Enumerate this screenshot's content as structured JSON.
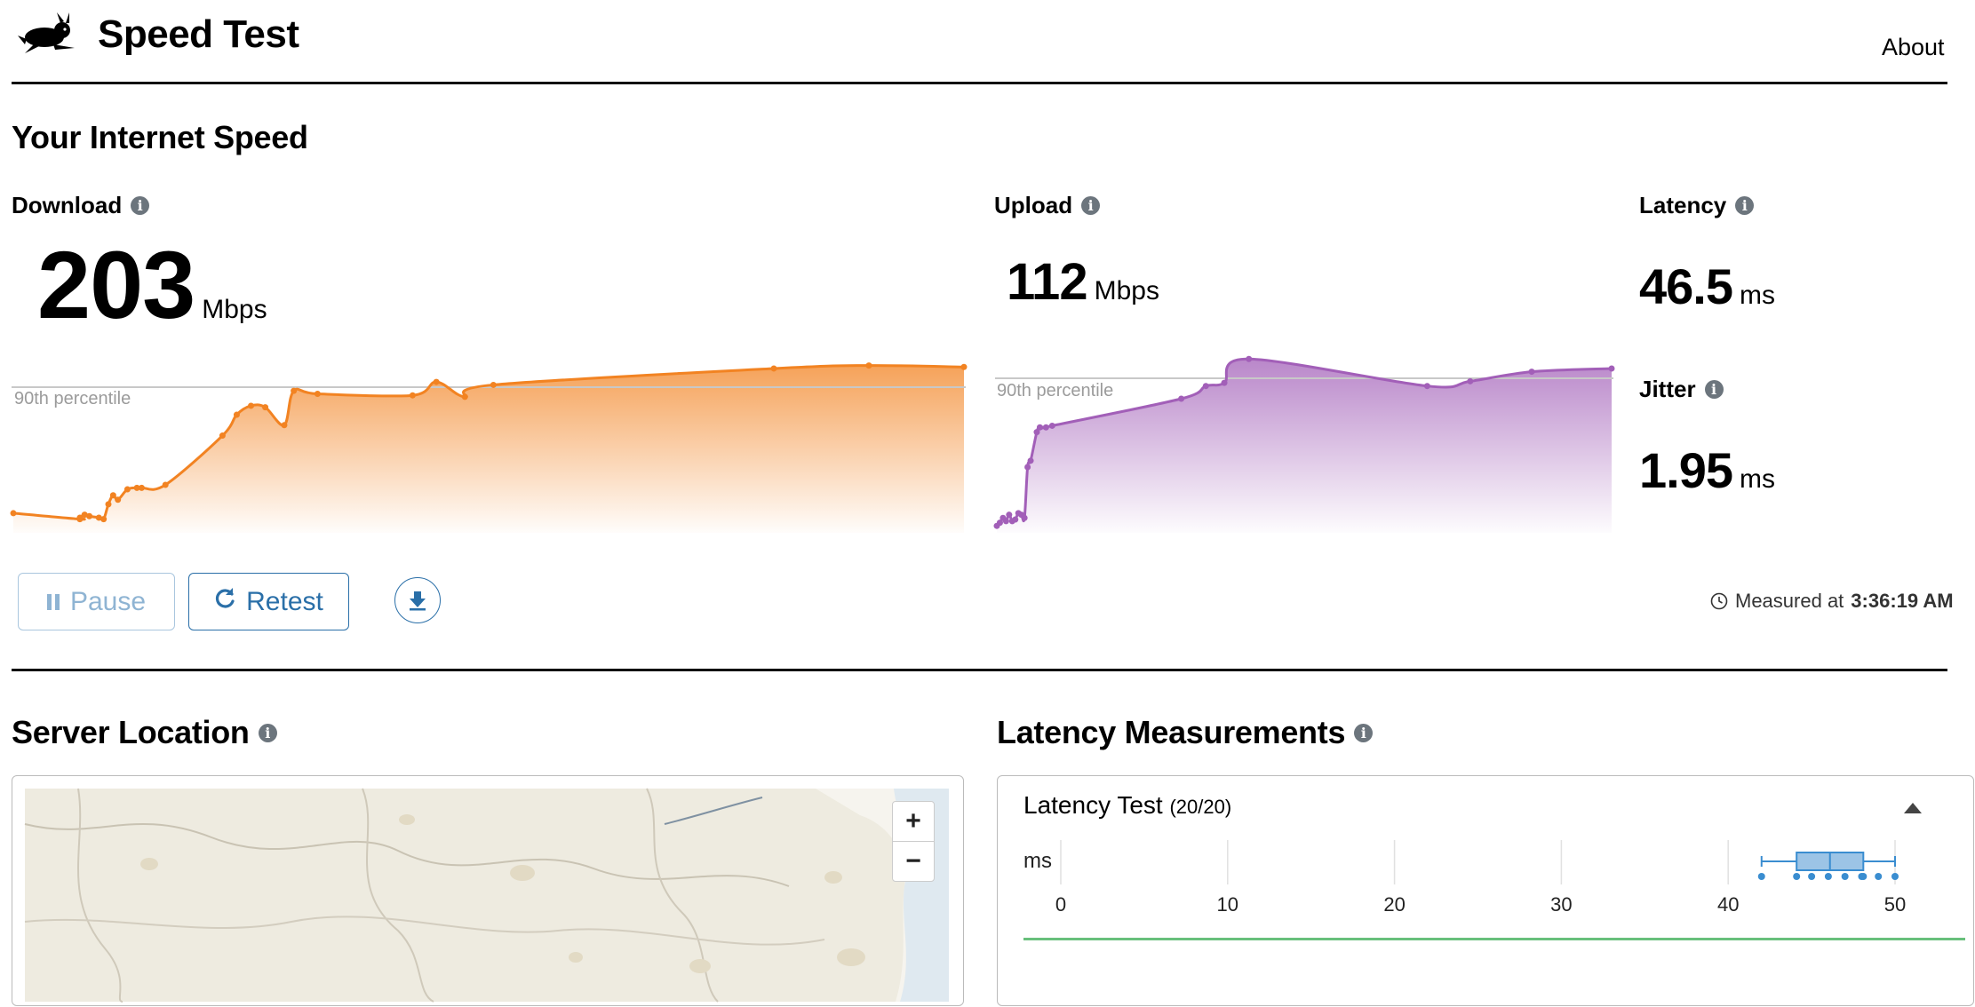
{
  "header": {
    "title": "Speed Test",
    "about": "About"
  },
  "speed": {
    "section_title": "Your Internet Speed",
    "download": {
      "label": "Download",
      "value": "203",
      "unit": "Mbps",
      "percentile_label": "90th percentile",
      "color": "#f28322"
    },
    "upload": {
      "label": "Upload",
      "value": "112",
      "unit": "Mbps",
      "percentile_label": "90th percentile",
      "color": "#a25fb8"
    },
    "latency": {
      "label": "Latency",
      "value": "46.5",
      "unit": "ms"
    },
    "jitter": {
      "label": "Jitter",
      "value": "1.95",
      "unit": "ms"
    }
  },
  "controls": {
    "pause_label": "Pause",
    "retest_label": "Retest",
    "measured_prefix": "Measured at",
    "measured_time": "3:36:19 AM"
  },
  "server": {
    "section_title": "Server Location",
    "zoom_in": "+",
    "zoom_out": "−"
  },
  "latency_section": {
    "section_title": "Latency Measurements",
    "test_title": "Latency Test",
    "test_count": "(20/20)",
    "axis_unit": "ms",
    "ticks": [
      "0",
      "10",
      "20",
      "30",
      "40",
      "50"
    ]
  },
  "chart_data": [
    {
      "type": "area",
      "name": "download",
      "x": [
        0,
        0.07,
        0.07,
        0.075,
        0.08,
        0.09,
        0.095,
        0.1,
        0.105,
        0.11,
        0.12,
        0.13,
        0.135,
        0.16,
        0.22,
        0.235,
        0.25,
        0.265,
        0.285,
        0.295,
        0.32,
        0.42,
        0.445,
        0.475,
        0.505,
        0.8,
        0.9,
        1.0
      ],
      "values": [
        0.06,
        0.02,
        0.03,
        0.05,
        0.04,
        0.03,
        0.02,
        0.12,
        0.18,
        0.15,
        0.22,
        0.23,
        0.23,
        0.25,
        0.58,
        0.72,
        0.78,
        0.77,
        0.65,
        0.88,
        0.86,
        0.85,
        0.94,
        0.84,
        0.92,
        1.03,
        1.05,
        1.04
      ]
    },
    {
      "type": "area",
      "name": "upload",
      "x": [
        0,
        0.005,
        0.01,
        0.015,
        0.02,
        0.025,
        0.03,
        0.035,
        0.04,
        0.045,
        0.05,
        0.055,
        0.065,
        0.07,
        0.08,
        0.09,
        0.3,
        0.34,
        0.37,
        0.41,
        0.7,
        0.77,
        0.87,
        1.0
      ],
      "values": [
        0.01,
        0.03,
        0.06,
        0.04,
        0.08,
        0.04,
        0.05,
        0.09,
        0.08,
        0.06,
        0.38,
        0.42,
        0.6,
        0.63,
        0.63,
        0.64,
        0.81,
        0.89,
        0.91,
        1.06,
        0.89,
        0.92,
        0.98,
        1.0
      ],
      "percentile_90": 0.96
    },
    {
      "type": "box",
      "name": "latency-test",
      "xlabel": "ms",
      "xlim": [
        0,
        50
      ],
      "ticks": [
        0,
        10,
        20,
        30,
        40,
        50
      ],
      "whisker_low": 42,
      "q1": 44.1,
      "median": 46.1,
      "q3": 48.1,
      "whisker_high": 50,
      "points": [
        42,
        44.1,
        45,
        46,
        47,
        48,
        48.1,
        49,
        50
      ]
    }
  ]
}
